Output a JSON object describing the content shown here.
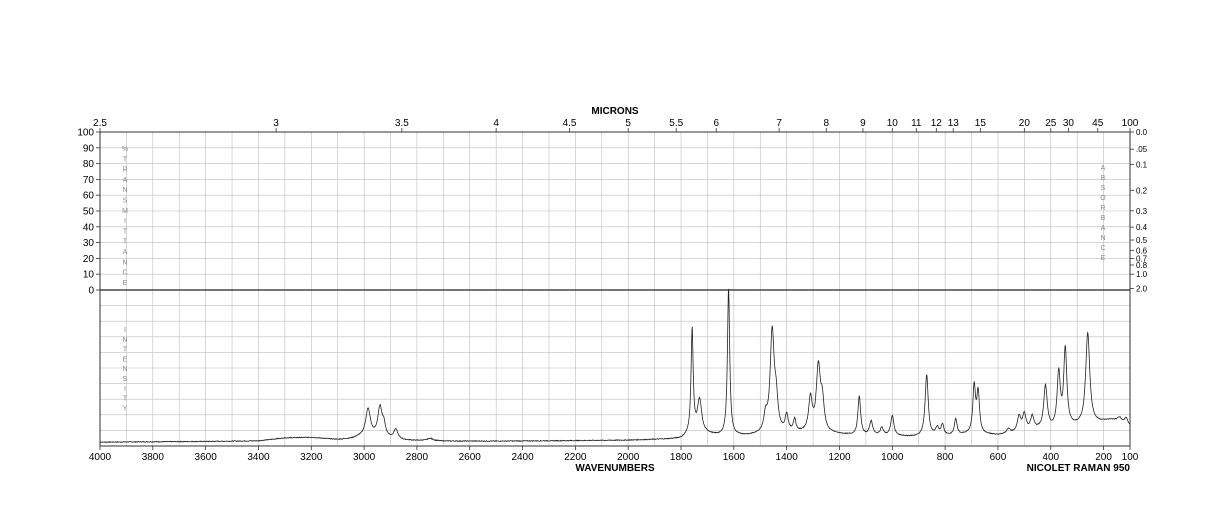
{
  "chart_data": {
    "type": "line",
    "title": "",
    "top_axis": {
      "label": "MICRONS",
      "tick_labels": [
        "2.5",
        "3",
        "3.5",
        "4",
        "4.5",
        "5",
        "5.5",
        "6",
        "7",
        "8",
        "9",
        "10",
        "11",
        "12",
        "13",
        "15",
        "20",
        "25",
        "30",
        "45",
        "100"
      ]
    },
    "xlabel": "WAVENUMBERS",
    "xlim": [
      4000,
      100
    ],
    "x_tick_labels": [
      "4000",
      "3800",
      "3600",
      "3400",
      "3200",
      "3000",
      "2800",
      "2600",
      "2400",
      "2200",
      "2000",
      "1800",
      "1600",
      "1400",
      "1200",
      "1000",
      "800",
      "600",
      "400",
      "200",
      "100"
    ],
    "left_axis": {
      "label_letters": [
        "%",
        "T",
        "R",
        "A",
        "N",
        "S",
        "M",
        "I",
        "T",
        "T",
        "A",
        "N",
        "C",
        "E"
      ],
      "tick_labels": [
        "100",
        "90",
        "80",
        "70",
        "60",
        "50",
        "40",
        "30",
        "20",
        "10",
        "0"
      ]
    },
    "right_axis": {
      "label_letters": [
        "A",
        "B",
        "S",
        "O",
        "R",
        "B",
        "A",
        "N",
        "C",
        "E"
      ],
      "tick_labels": [
        "0.0",
        ".05",
        "0.1",
        "0.2",
        "0.3",
        "0.4",
        "0.5",
        "0.6",
        "0.7",
        "0.8",
        "1.0",
        "2.0"
      ]
    },
    "intensity_label_letters": [
      "I",
      "N",
      "T",
      "E",
      "N",
      "S",
      "I",
      "T",
      "Y"
    ],
    "instrument": "NICOLET RAMAN 950",
    "grid": true,
    "series": [
      {
        "baseline": [
          [
            4000,
            2.5
          ],
          [
            3800,
            2.7
          ],
          [
            3600,
            2.9
          ],
          [
            3400,
            3.3
          ],
          [
            3300,
            5.2
          ],
          [
            3200,
            5.5
          ],
          [
            3100,
            4.1
          ],
          [
            3050,
            4.6
          ],
          [
            3020,
            5.6
          ],
          [
            2900,
            4.6
          ],
          [
            2850,
            3.6
          ],
          [
            2700,
            3.1
          ],
          [
            2500,
            3.1
          ],
          [
            2300,
            3.3
          ],
          [
            2000,
            3.7
          ],
          [
            1800,
            4.5
          ],
          [
            1780,
            5.6
          ],
          [
            1700,
            7.2
          ],
          [
            1650,
            6.2
          ],
          [
            1600,
            6.2
          ],
          [
            1550,
            6.4
          ],
          [
            1500,
            6.9
          ],
          [
            1400,
            7.6
          ],
          [
            1300,
            8.4
          ],
          [
            1200,
            7.3
          ],
          [
            1150,
            6.7
          ],
          [
            1000,
            6.2
          ],
          [
            900,
            5.7
          ],
          [
            870,
            5.4
          ],
          [
            700,
            7.5
          ],
          [
            600,
            6.8
          ],
          [
            500,
            8.3
          ],
          [
            450,
            9.7
          ],
          [
            400,
            9.8
          ],
          [
            300,
            12.5
          ],
          [
            250,
            13.5
          ],
          [
            200,
            15.5
          ],
          [
            170,
            16.5
          ],
          [
            100,
            13.0
          ]
        ],
        "peaks": [
          {
            "x": 2985,
            "height": 18,
            "width": 11
          },
          {
            "x": 2940,
            "height": 19,
            "width": 10
          },
          {
            "x": 2925,
            "height": 7,
            "width": 7
          },
          {
            "x": 2880,
            "height": 6,
            "width": 9
          },
          {
            "x": 2750,
            "height": 1.5,
            "width": 14
          },
          {
            "x": 1758,
            "height": 68,
            "width": 5
          },
          {
            "x": 1730,
            "height": 22,
            "width": 10
          },
          {
            "x": 1620,
            "height": 95,
            "width": 5
          },
          {
            "x": 1480,
            "height": 10,
            "width": 8
          },
          {
            "x": 1455,
            "height": 64,
            "width": 9
          },
          {
            "x": 1440,
            "height": 19,
            "width": 8
          },
          {
            "x": 1400,
            "height": 11,
            "width": 7
          },
          {
            "x": 1370,
            "height": 8,
            "width": 6
          },
          {
            "x": 1310,
            "height": 21,
            "width": 8
          },
          {
            "x": 1280,
            "height": 41,
            "width": 9
          },
          {
            "x": 1265,
            "height": 18,
            "width": 8
          },
          {
            "x": 1125,
            "height": 25,
            "width": 6
          },
          {
            "x": 1080,
            "height": 9,
            "width": 7
          },
          {
            "x": 1040,
            "height": 5,
            "width": 7
          },
          {
            "x": 1000,
            "height": 13,
            "width": 7
          },
          {
            "x": 870,
            "height": 40,
            "width": 7
          },
          {
            "x": 830,
            "height": 5,
            "width": 8
          },
          {
            "x": 810,
            "height": 7,
            "width": 6
          },
          {
            "x": 760,
            "height": 10,
            "width": 6
          },
          {
            "x": 690,
            "height": 30,
            "width": 6
          },
          {
            "x": 675,
            "height": 26,
            "width": 6
          },
          {
            "x": 560,
            "height": 3,
            "width": 8
          },
          {
            "x": 520,
            "height": 10,
            "width": 8
          },
          {
            "x": 500,
            "height": 11,
            "width": 8
          },
          {
            "x": 470,
            "height": 9,
            "width": 8
          },
          {
            "x": 420,
            "height": 28,
            "width": 8
          },
          {
            "x": 370,
            "height": 35,
            "width": 7
          },
          {
            "x": 345,
            "height": 50,
            "width": 7
          },
          {
            "x": 260,
            "height": 59,
            "width": 9
          },
          {
            "x": 140,
            "height": 3,
            "width": 10
          },
          {
            "x": 115,
            "height": 4,
            "width": 7
          }
        ]
      }
    ]
  }
}
